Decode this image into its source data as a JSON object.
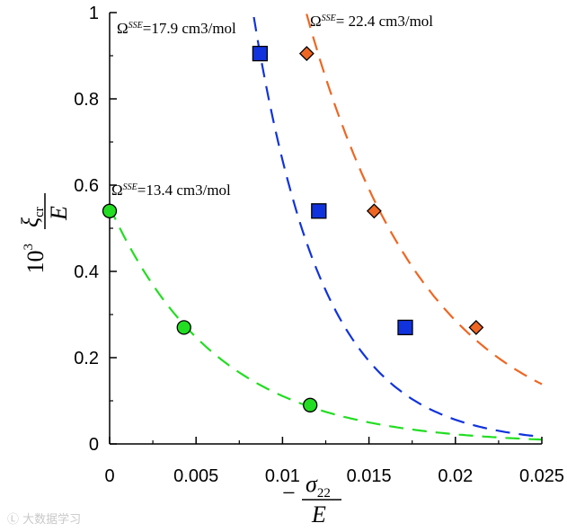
{
  "chart_data": {
    "type": "scatter",
    "xlim": [
      0,
      0.025
    ],
    "ylim": [
      0,
      1
    ],
    "x_ticks": [
      0,
      0.005,
      0.01,
      0.015,
      0.02,
      0.025
    ],
    "x_tick_labels": [
      "0",
      "0.005",
      "0.01",
      "0.015",
      "0.02",
      "0.025"
    ],
    "y_ticks": [
      0,
      0.2,
      0.4,
      0.6,
      0.8,
      1
    ],
    "y_tick_labels": [
      "0",
      "0.2",
      "0.4",
      "0.6",
      "0.8",
      "1"
    ],
    "xlabel": {
      "minus": "−",
      "numerator": "σ",
      "subscript": "22",
      "denominator": "E"
    },
    "ylabel": {
      "prefix": "10",
      "exponent": "3",
      "numerator": "ξ",
      "subscript": "cr",
      "denominator": "E"
    },
    "grid": false,
    "series": [
      {
        "omega_symbol": "Ω",
        "omega_superscript": "SSE",
        "omega_value": "=13.4 cm3/mol",
        "color": "#22dd22",
        "marker": "circle",
        "points": [
          [
            0,
            0.54
          ],
          [
            0.0043,
            0.27
          ],
          [
            0.0116,
            0.09
          ]
        ],
        "fit": {
          "a": 0.55,
          "k": 160,
          "x_start": 0,
          "x_end": 0.025
        }
      },
      {
        "omega_symbol": "Ω",
        "omega_superscript": "SSE",
        "omega_value": "=17.9 cm3/mol",
        "color": "#1133dd",
        "marker": "square",
        "points": [
          [
            0.0087,
            0.905
          ],
          [
            0.0121,
            0.54
          ],
          [
            0.0171,
            0.27
          ]
        ],
        "fit": {
          "a": 7.7,
          "k": 246,
          "x_start": 0.0082,
          "x_end": 0.025
        }
      },
      {
        "omega_symbol": "Ω",
        "omega_superscript": "SSE",
        "omega_value": "= 22.4 cm3/mol",
        "color": "#ee6622",
        "marker": "diamond",
        "points": [
          [
            0.0114,
            0.905
          ],
          [
            0.0153,
            0.54
          ],
          [
            0.0212,
            0.27
          ]
        ],
        "fit": {
          "a": 5.2,
          "k": 145,
          "x_start": 0.0108,
          "x_end": 0.025
        }
      }
    ]
  },
  "watermark": "Ⓛ 大数据学习"
}
